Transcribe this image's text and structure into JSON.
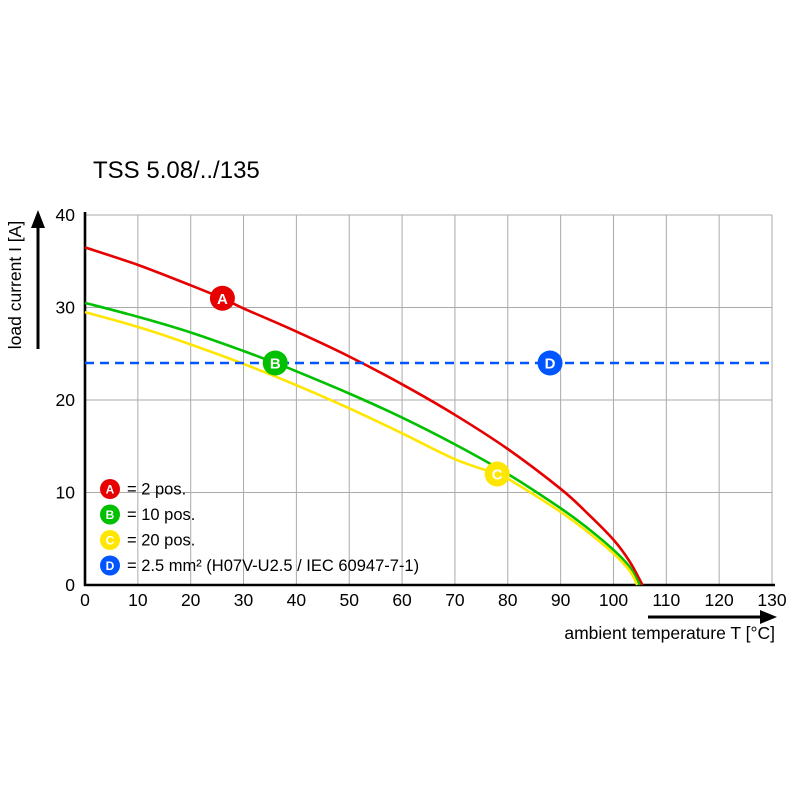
{
  "chart_data": {
    "type": "line",
    "title": "TSS 5.08/../135",
    "xlabel": "ambient temperature T [°C]",
    "ylabel": "load current I [A]",
    "xlim": [
      0,
      130
    ],
    "ylim": [
      0,
      40
    ],
    "xticks": [
      0,
      10,
      20,
      30,
      40,
      50,
      60,
      70,
      80,
      90,
      100,
      110,
      120,
      130
    ],
    "yticks": [
      0,
      10,
      20,
      30,
      40
    ],
    "grid": true,
    "legend_position": "lower-left",
    "colors": {
      "curve_a": "#e60000",
      "curve_b": "#00c000",
      "curve_c": "#ffe600",
      "curve_d": "#0055ff",
      "grid": "#aaaaaa",
      "axis": "#000000"
    },
    "series": [
      {
        "name": "A",
        "label": "2 pos.",
        "color": "#e60000",
        "style": "solid",
        "points": [
          [
            0,
            36.5
          ],
          [
            10,
            34.6
          ],
          [
            20,
            32.4
          ],
          [
            26,
            31
          ],
          [
            30,
            29.9
          ],
          [
            40,
            27.4
          ],
          [
            50,
            24.7
          ],
          [
            60,
            21.7
          ],
          [
            70,
            18.4
          ],
          [
            80,
            14.7
          ],
          [
            90,
            10.4
          ],
          [
            95,
            7.8
          ],
          [
            100,
            4.9
          ],
          [
            103,
            2.6
          ],
          [
            105.5,
            0
          ]
        ]
      },
      {
        "name": "B",
        "label": "10 pos.",
        "color": "#00c000",
        "style": "solid",
        "points": [
          [
            0,
            30.5
          ],
          [
            10,
            29.0
          ],
          [
            20,
            27.3
          ],
          [
            30,
            25.3
          ],
          [
            36,
            24
          ],
          [
            40,
            23.1
          ],
          [
            50,
            20.7
          ],
          [
            60,
            18.1
          ],
          [
            70,
            15.2
          ],
          [
            80,
            12.0
          ],
          [
            90,
            8.3
          ],
          [
            95,
            6.2
          ],
          [
            100,
            3.8
          ],
          [
            103,
            2.0
          ],
          [
            105,
            0
          ]
        ]
      },
      {
        "name": "C",
        "label": "20 pos.",
        "color": "#ffe600",
        "style": "solid",
        "points": [
          [
            0,
            29.5
          ],
          [
            10,
            27.9
          ],
          [
            20,
            26.0
          ],
          [
            30,
            23.9
          ],
          [
            40,
            21.6
          ],
          [
            50,
            19.1
          ],
          [
            60,
            16.4
          ],
          [
            70,
            13.6
          ],
          [
            78,
            12.0
          ],
          [
            80,
            11.5
          ],
          [
            90,
            7.9
          ],
          [
            95,
            5.8
          ],
          [
            100,
            3.4
          ],
          [
            103,
            1.6
          ],
          [
            104.5,
            0
          ]
        ]
      },
      {
        "name": "D",
        "label": "2.5 mm² (H07V-U2.5 / IEC 60947-7-1)",
        "color": "#0055ff",
        "style": "dashed",
        "points": [
          [
            0,
            24
          ],
          [
            130,
            24
          ]
        ]
      }
    ],
    "markers": [
      {
        "label": "A",
        "x": 26,
        "y": 31,
        "color": "#e60000"
      },
      {
        "label": "B",
        "x": 36,
        "y": 24,
        "color": "#00c000"
      },
      {
        "label": "C",
        "x": 78,
        "y": 12,
        "color": "#ffe600"
      },
      {
        "label": "D",
        "x": 88,
        "y": 24,
        "color": "#0055ff"
      }
    ],
    "legend": [
      {
        "key": "A",
        "color": "#e60000",
        "text": "= 2 pos."
      },
      {
        "key": "B",
        "color": "#00c000",
        "text": "= 10 pos."
      },
      {
        "key": "C",
        "color": "#ffe600",
        "text": "= 20 pos."
      },
      {
        "key": "D",
        "color": "#0055ff",
        "text": "= 2.5 mm² (H07V-U2.5 / IEC 60947-7-1)"
      }
    ]
  }
}
